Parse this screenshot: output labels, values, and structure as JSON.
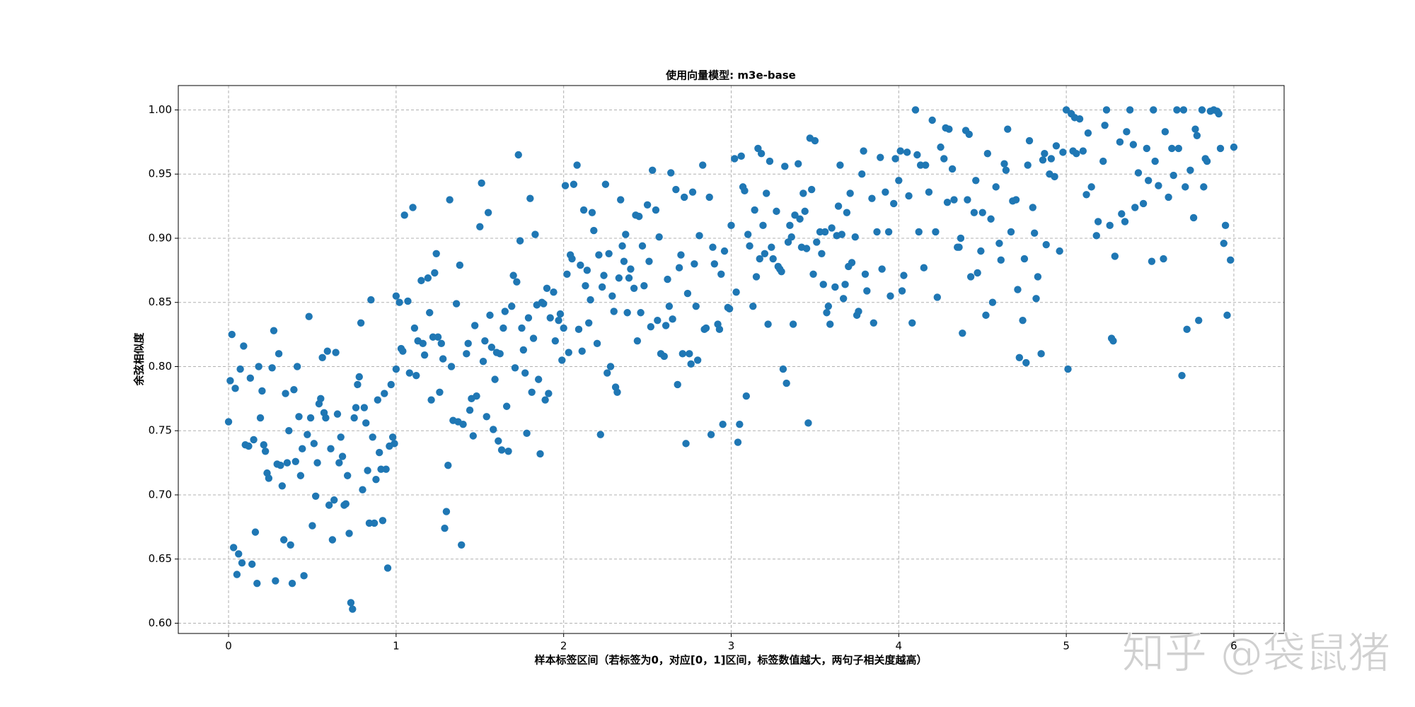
{
  "chart_data": {
    "type": "scatter",
    "title": "使用向量模型: m3e-base",
    "xlabel": "样本标签区间（若标签为0，对应[0，1]区间，标签数值越大，两句子相关度越高）",
    "ylabel": "余弦相似度",
    "watermark": "知乎 @袋鼠猪",
    "grid": true,
    "xlim": [
      -0.3,
      6.3
    ],
    "ylim": [
      0.592,
      1.019
    ],
    "xticks": [
      0,
      1,
      2,
      3,
      4,
      5,
      6
    ],
    "yticks": [
      {
        "value": 0.6,
        "label": "0.60"
      },
      {
        "value": 0.65,
        "label": "0.65"
      },
      {
        "value": 0.7,
        "label": "0.70"
      },
      {
        "value": 0.75,
        "label": "0.75"
      },
      {
        "value": 0.8,
        "label": "0.80"
      },
      {
        "value": 0.85,
        "label": "0.85"
      },
      {
        "value": 0.9,
        "label": "0.90"
      },
      {
        "value": 0.95,
        "label": "0.95"
      },
      {
        "value": 1.0,
        "label": "1.00"
      }
    ],
    "series": [
      {
        "color": "#1f77b4",
        "x": [
          0,
          0.01,
          0.02,
          0.03,
          0.04,
          0.05,
          0.06,
          0.07,
          0.08,
          0.09,
          0.1,
          0.12,
          0.13,
          0.14,
          0.15,
          0.16,
          0.17,
          0.18,
          0.19,
          0.2,
          0.21,
          0.22,
          0.23,
          0.24,
          0.26,
          0.27,
          0.28,
          0.29,
          0.3,
          0.31,
          0.32,
          0.33,
          0.34,
          0.35,
          0.36,
          0.37,
          0.38,
          0.39,
          0.4,
          0.41,
          0.42,
          0.43,
          0.44,
          0.45,
          0.47,
          0.48,
          0.49,
          0.5,
          0.51,
          0.52,
          0.53,
          0.54,
          0.55,
          0.56,
          0.57,
          0.58,
          0.59,
          0.6,
          0.61,
          0.62,
          0.63,
          0.64,
          0.65,
          0.66,
          0.67,
          0.68,
          0.69,
          0.7,
          0.71,
          0.72,
          0.73,
          0.74,
          0.75,
          0.76,
          0.77,
          0.78,
          0.79,
          0.8,
          0.81,
          0.82,
          0.83,
          0.84,
          0.85,
          0.86,
          0.87,
          0.88,
          0.89,
          0.9,
          0.91,
          0.92,
          0.93,
          0.94,
          0.95,
          0.96,
          0.97,
          0.98,
          0.99,
          1.0,
          1.0,
          1.02,
          1.03,
          1.04,
          1.05,
          1.07,
          1.08,
          1.1,
          1.11,
          1.12,
          1.13,
          1.15,
          1.16,
          1.17,
          1.19,
          1.2,
          1.21,
          1.22,
          1.23,
          1.24,
          1.25,
          1.26,
          1.27,
          1.28,
          1.29,
          1.3,
          1.31,
          1.32,
          1.33,
          1.34,
          1.36,
          1.37,
          1.38,
          1.39,
          1.4,
          1.42,
          1.43,
          1.44,
          1.45,
          1.46,
          1.47,
          1.48,
          1.5,
          1.51,
          1.52,
          1.53,
          1.54,
          1.55,
          1.56,
          1.57,
          1.58,
          1.59,
          1.6,
          1.61,
          1.62,
          1.63,
          1.64,
          1.65,
          1.66,
          1.67,
          1.69,
          1.7,
          1.71,
          1.72,
          1.73,
          1.74,
          1.75,
          1.76,
          1.77,
          1.78,
          1.79,
          1.8,
          1.81,
          1.82,
          1.83,
          1.84,
          1.85,
          1.86,
          1.87,
          1.88,
          1.89,
          1.9,
          1.91,
          1.92,
          1.94,
          1.95,
          1.97,
          1.98,
          1.99,
          2.0,
          2.01,
          2.02,
          2.03,
          2.04,
          2.05,
          2.06,
          2.08,
          2.09,
          2.1,
          2.11,
          2.12,
          2.13,
          2.14,
          2.15,
          2.16,
          2.17,
          2.18,
          2.2,
          2.21,
          2.22,
          2.23,
          2.24,
          2.25,
          2.26,
          2.27,
          2.28,
          2.29,
          2.3,
          2.31,
          2.32,
          2.33,
          2.34,
          2.35,
          2.36,
          2.37,
          2.38,
          2.39,
          2.4,
          2.42,
          2.43,
          2.44,
          2.45,
          2.46,
          2.47,
          2.48,
          2.5,
          2.51,
          2.52,
          2.53,
          2.55,
          2.56,
          2.57,
          2.58,
          2.6,
          2.61,
          2.62,
          2.63,
          2.64,
          2.65,
          2.67,
          2.68,
          2.69,
          2.7,
          2.71,
          2.72,
          2.73,
          2.74,
          2.75,
          2.76,
          2.77,
          2.78,
          2.79,
          2.8,
          2.81,
          2.83,
          2.84,
          2.85,
          2.87,
          2.88,
          2.89,
          2.9,
          2.92,
          2.93,
          2.94,
          2.95,
          2.96,
          2.98,
          2.99,
          3.0,
          3.02,
          3.03,
          3.04,
          3.05,
          3.06,
          3.07,
          3.08,
          3.09,
          3.1,
          3.11,
          3.13,
          3.14,
          3.15,
          3.16,
          3.17,
          3.18,
          3.19,
          3.2,
          3.21,
          3.22,
          3.23,
          3.24,
          3.25,
          3.27,
          3.28,
          3.29,
          3.3,
          3.31,
          3.32,
          3.33,
          3.34,
          3.35,
          3.36,
          3.37,
          3.38,
          3.4,
          3.41,
          3.42,
          3.43,
          3.44,
          3.45,
          3.46,
          3.47,
          3.48,
          3.49,
          3.5,
          3.51,
          3.53,
          3.54,
          3.55,
          3.56,
          3.57,
          3.58,
          3.59,
          3.6,
          3.62,
          3.63,
          3.64,
          3.65,
          3.66,
          3.67,
          3.68,
          3.69,
          3.7,
          3.71,
          3.72,
          3.74,
          3.75,
          3.76,
          3.78,
          3.79,
          3.8,
          3.81,
          3.84,
          3.85,
          3.87,
          3.89,
          3.9,
          3.92,
          3.94,
          3.95,
          3.97,
          3.98,
          4.0,
          4.01,
          4.02,
          4.03,
          4.05,
          4.06,
          4.08,
          4.1,
          4.11,
          4.12,
          4.13,
          4.15,
          4.16,
          4.18,
          4.2,
          4.22,
          4.23,
          4.25,
          4.27,
          4.28,
          4.29,
          4.3,
          4.32,
          4.33,
          4.35,
          4.36,
          4.37,
          4.38,
          4.4,
          4.41,
          4.42,
          4.43,
          4.45,
          4.46,
          4.47,
          4.49,
          4.5,
          4.52,
          4.53,
          4.55,
          4.56,
          4.58,
          4.6,
          4.61,
          4.63,
          4.64,
          4.65,
          4.67,
          4.68,
          4.7,
          4.71,
          4.72,
          4.74,
          4.75,
          4.76,
          4.77,
          4.78,
          4.8,
          4.81,
          4.82,
          4.83,
          4.85,
          4.86,
          4.87,
          4.88,
          4.9,
          4.91,
          4.93,
          4.94,
          4.96,
          4.98,
          5.0,
          5.01,
          5.03,
          5.04,
          5.05,
          5.06,
          5.08,
          5.1,
          5.12,
          5.13,
          5.15,
          5.18,
          5.19,
          5.22,
          5.23,
          5.24,
          5.26,
          5.27,
          5.28,
          5.29,
          5.32,
          5.33,
          5.35,
          5.36,
          5.38,
          5.4,
          5.41,
          5.43,
          5.46,
          5.48,
          5.49,
          5.51,
          5.52,
          5.53,
          5.55,
          5.58,
          5.59,
          5.61,
          5.63,
          5.64,
          5.66,
          5.67,
          5.69,
          5.7,
          5.71,
          5.72,
          5.74,
          5.76,
          5.77,
          5.78,
          5.79,
          5.81,
          5.82,
          5.83,
          5.84,
          5.86,
          5.88,
          5.9,
          5.91,
          5.92,
          5.94,
          5.95,
          5.96,
          5.98,
          6.0
        ],
        "values": [
          0.757,
          0.789,
          0.825,
          0.659,
          0.783,
          0.638,
          0.654,
          0.798,
          0.647,
          0.816,
          0.739,
          0.738,
          0.791,
          0.646,
          0.743,
          0.671,
          0.631,
          0.8,
          0.76,
          0.781,
          0.739,
          0.734,
          0.717,
          0.713,
          0.799,
          0.828,
          0.633,
          0.724,
          0.81,
          0.723,
          0.707,
          0.665,
          0.779,
          0.725,
          0.75,
          0.661,
          0.631,
          0.782,
          0.726,
          0.8,
          0.761,
          0.715,
          0.736,
          0.637,
          0.747,
          0.839,
          0.76,
          0.676,
          0.74,
          0.699,
          0.725,
          0.771,
          0.775,
          0.807,
          0.764,
          0.76,
          0.812,
          0.692,
          0.736,
          0.665,
          0.696,
          0.811,
          0.763,
          0.725,
          0.745,
          0.73,
          0.692,
          0.693,
          0.715,
          0.67,
          0.616,
          0.611,
          0.76,
          0.768,
          0.786,
          0.792,
          0.834,
          0.704,
          0.768,
          0.756,
          0.719,
          0.678,
          0.852,
          0.745,
          0.678,
          0.712,
          0.774,
          0.733,
          0.72,
          0.68,
          0.779,
          0.72,
          0.643,
          0.738,
          0.786,
          0.745,
          0.74,
          0.855,
          0.798,
          0.85,
          0.814,
          0.812,
          0.918,
          0.851,
          0.795,
          0.924,
          0.83,
          0.793,
          0.82,
          0.867,
          0.818,
          0.809,
          0.869,
          0.842,
          0.774,
          0.823,
          0.873,
          0.888,
          0.823,
          0.78,
          0.818,
          0.806,
          0.674,
          0.687,
          0.723,
          0.93,
          0.8,
          0.758,
          0.849,
          0.757,
          0.879,
          0.661,
          0.755,
          0.81,
          0.818,
          0.766,
          0.775,
          0.746,
          0.832,
          0.777,
          0.909,
          0.943,
          0.804,
          0.82,
          0.761,
          0.92,
          0.84,
          0.815,
          0.751,
          0.79,
          0.811,
          0.742,
          0.81,
          0.735,
          0.83,
          0.843,
          0.769,
          0.734,
          0.847,
          0.871,
          0.799,
          0.866,
          0.965,
          0.898,
          0.83,
          0.813,
          0.795,
          0.748,
          0.838,
          0.931,
          0.78,
          0.822,
          0.903,
          0.848,
          0.79,
          0.732,
          0.85,
          0.849,
          0.774,
          0.861,
          0.779,
          0.838,
          0.858,
          0.82,
          0.836,
          0.841,
          0.805,
          0.83,
          0.941,
          0.872,
          0.811,
          0.887,
          0.884,
          0.942,
          0.957,
          0.829,
          0.879,
          0.812,
          0.922,
          0.863,
          0.875,
          0.834,
          0.852,
          0.92,
          0.906,
          0.818,
          0.887,
          0.747,
          0.862,
          0.871,
          0.942,
          0.795,
          0.888,
          0.8,
          0.855,
          0.843,
          0.784,
          0.78,
          0.869,
          0.93,
          0.894,
          0.882,
          0.903,
          0.842,
          0.869,
          0.876,
          0.861,
          0.918,
          0.82,
          0.917,
          0.842,
          0.894,
          0.863,
          0.926,
          0.882,
          0.831,
          0.953,
          0.922,
          0.836,
          0.901,
          0.81,
          0.808,
          0.832,
          0.868,
          0.847,
          0.951,
          0.837,
          0.938,
          0.786,
          0.877,
          0.887,
          0.81,
          0.932,
          0.74,
          0.857,
          0.81,
          0.802,
          0.936,
          0.88,
          0.847,
          0.805,
          0.902,
          0.957,
          0.829,
          0.83,
          0.932,
          0.747,
          0.893,
          0.88,
          0.833,
          0.829,
          0.872,
          0.755,
          0.89,
          0.846,
          0.845,
          0.91,
          0.962,
          0.858,
          0.741,
          0.755,
          0.964,
          0.94,
          0.937,
          0.777,
          0.903,
          0.894,
          0.847,
          0.922,
          0.87,
          0.97,
          0.884,
          0.966,
          0.91,
          0.888,
          0.935,
          0.833,
          0.96,
          0.893,
          0.884,
          0.921,
          0.878,
          0.876,
          0.874,
          0.798,
          0.956,
          0.787,
          0.897,
          0.91,
          0.901,
          0.833,
          0.918,
          0.958,
          0.915,
          0.893,
          0.935,
          0.921,
          0.892,
          0.756,
          0.978,
          0.938,
          0.872,
          0.976,
          0.897,
          0.905,
          0.888,
          0.864,
          0.905,
          0.842,
          0.847,
          0.833,
          0.908,
          0.862,
          0.902,
          0.925,
          0.957,
          0.903,
          0.853,
          0.864,
          0.92,
          0.878,
          0.935,
          0.881,
          0.901,
          0.84,
          0.843,
          0.95,
          0.968,
          0.872,
          0.859,
          0.931,
          0.834,
          0.905,
          0.963,
          0.876,
          0.936,
          0.905,
          0.855,
          0.927,
          0.962,
          0.945,
          0.968,
          0.859,
          0.871,
          0.967,
          0.933,
          0.834,
          1.0,
          0.965,
          0.905,
          0.957,
          0.877,
          0.957,
          0.936,
          0.992,
          0.905,
          0.854,
          0.971,
          0.962,
          0.986,
          0.928,
          0.985,
          0.954,
          0.93,
          0.893,
          0.893,
          0.9,
          0.826,
          0.984,
          0.93,
          0.981,
          0.87,
          0.92,
          0.945,
          0.873,
          0.89,
          0.92,
          0.84,
          0.966,
          0.915,
          0.85,
          0.94,
          0.896,
          0.883,
          0.958,
          0.953,
          0.985,
          0.905,
          0.929,
          0.93,
          0.86,
          0.807,
          0.836,
          0.884,
          0.803,
          0.957,
          0.976,
          0.924,
          0.904,
          0.853,
          0.87,
          0.81,
          0.961,
          0.966,
          0.895,
          0.95,
          0.962,
          0.948,
          0.972,
          0.89,
          0.967,
          1.0,
          0.798,
          0.997,
          0.968,
          0.994,
          0.966,
          0.993,
          0.968,
          0.934,
          0.982,
          0.94,
          0.902,
          0.913,
          0.96,
          0.988,
          1.0,
          0.91,
          0.822,
          0.82,
          0.886,
          0.975,
          0.919,
          0.913,
          0.983,
          1.0,
          0.973,
          0.924,
          0.951,
          0.927,
          0.97,
          0.945,
          0.882,
          1.0,
          0.96,
          0.941,
          0.884,
          0.983,
          0.932,
          0.97,
          0.949,
          1.0,
          0.97,
          0.793,
          1.0,
          0.94,
          0.829,
          0.953,
          0.916,
          0.985,
          0.98,
          0.836,
          1.0,
          0.94,
          0.962,
          0.96,
          0.999,
          1.0,
          0.999,
          0.997,
          0.97,
          0.896,
          0.91,
          0.84,
          0.883,
          0.971
        ]
      }
    ]
  }
}
